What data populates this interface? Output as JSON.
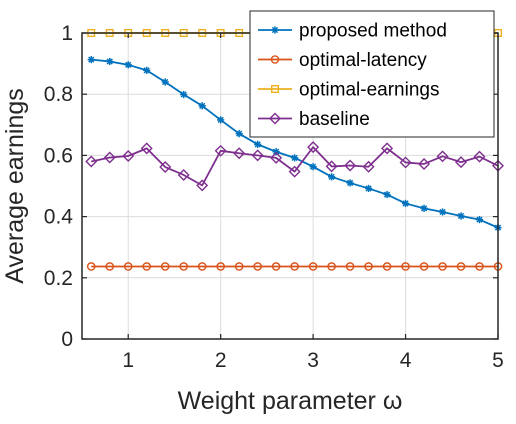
{
  "chart_data": {
    "type": "line",
    "xlabel": "Weight parameter ω",
    "ylabel": "Average earnings",
    "xlim": [
      0.5,
      5
    ],
    "ylim": [
      0,
      1
    ],
    "xticks": [
      "1",
      "2",
      "3",
      "4",
      "5"
    ],
    "yticks": [
      "0",
      "0.2",
      "0.4",
      "0.6",
      "0.8",
      "1"
    ],
    "grid": true,
    "legend_position": "top-right",
    "x": [
      0.6,
      0.8,
      1.0,
      1.2,
      1.4,
      1.6,
      1.8,
      2.0,
      2.2,
      2.4,
      2.6,
      2.8,
      3.0,
      3.2,
      3.4,
      3.6,
      3.8,
      4.0,
      4.2,
      4.4,
      4.6,
      4.8,
      5.0
    ],
    "series": [
      {
        "name": "proposed method",
        "color": "#0072BD",
        "marker": "asterisk",
        "values": [
          0.913,
          0.907,
          0.896,
          0.878,
          0.84,
          0.799,
          0.762,
          0.716,
          0.671,
          0.636,
          0.612,
          0.592,
          0.563,
          0.53,
          0.51,
          0.492,
          0.472,
          0.443,
          0.427,
          0.415,
          0.402,
          0.39,
          0.364
        ]
      },
      {
        "name": "optimal-latency",
        "color": "#D95319",
        "marker": "circle",
        "values": [
          0.237,
          0.237,
          0.237,
          0.237,
          0.237,
          0.237,
          0.237,
          0.237,
          0.237,
          0.237,
          0.237,
          0.237,
          0.237,
          0.237,
          0.237,
          0.237,
          0.237,
          0.237,
          0.237,
          0.237,
          0.237,
          0.237,
          0.237
        ]
      },
      {
        "name": "optimal-earnings",
        "color": "#EDB120",
        "marker": "square",
        "values": [
          1,
          1,
          1,
          1,
          1,
          1,
          1,
          1,
          1,
          1,
          1,
          1,
          1,
          1,
          1,
          1,
          1,
          1,
          1,
          1,
          1,
          1,
          1
        ]
      },
      {
        "name": "baseline",
        "color": "#7E2F8E",
        "marker": "diamond",
        "values": [
          0.58,
          0.593,
          0.598,
          0.623,
          0.562,
          0.536,
          0.502,
          0.615,
          0.607,
          0.6,
          0.592,
          0.547,
          0.627,
          0.564,
          0.567,
          0.563,
          0.623,
          0.577,
          0.572,
          0.597,
          0.578,
          0.596,
          0.566
        ]
      }
    ]
  }
}
